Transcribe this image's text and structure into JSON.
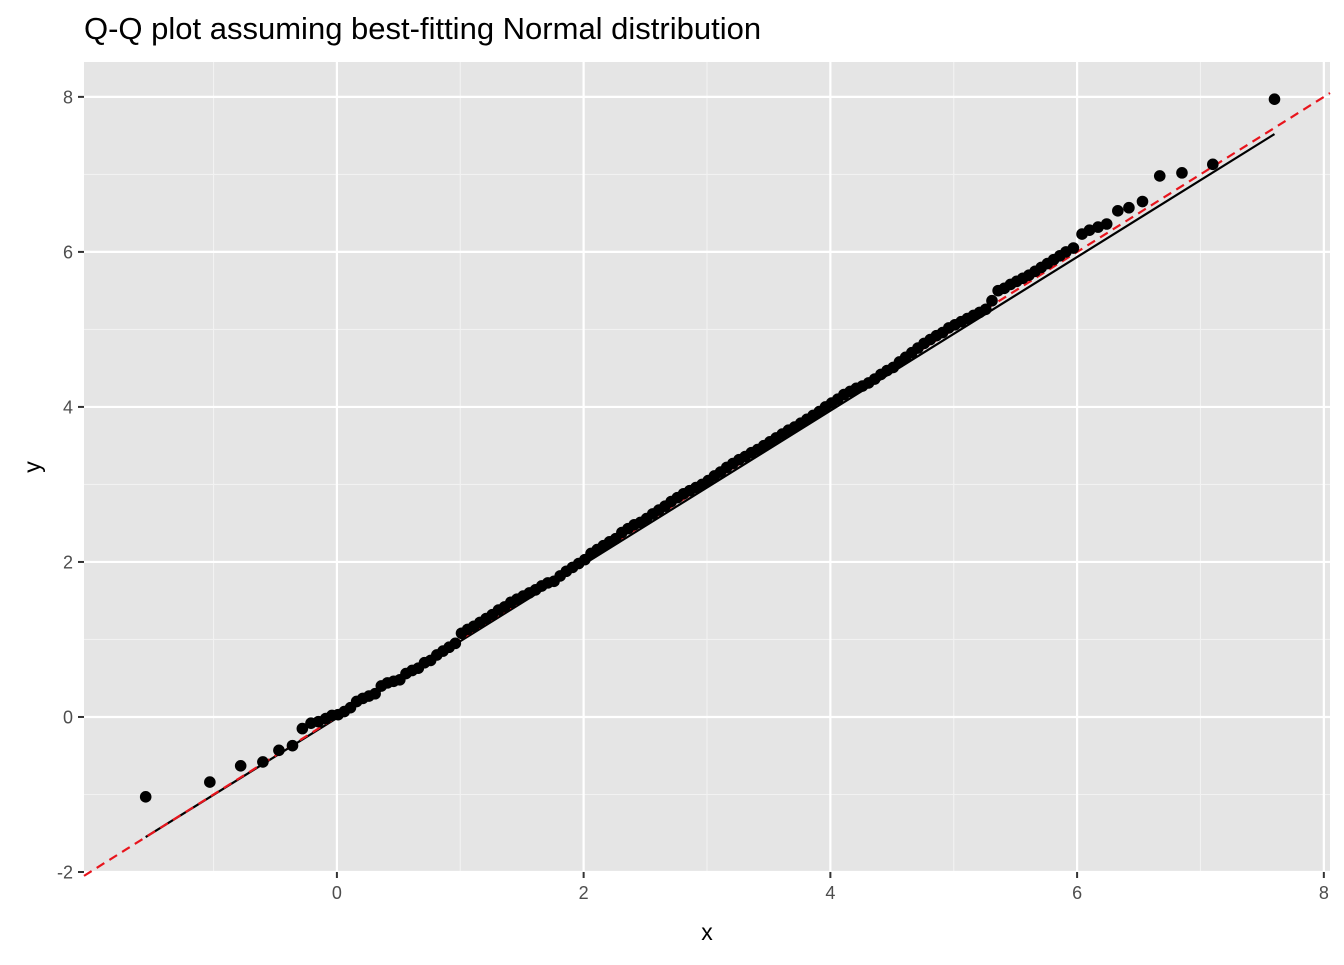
{
  "chart_data": {
    "type": "scatter",
    "title": "Q-Q plot assuming best-fitting Normal distribution",
    "xlabel": "x",
    "ylabel": "y",
    "xlim": [
      -2.05,
      8.05
    ],
    "ylim": [
      -2.0,
      8.45
    ],
    "x_ticks": [
      0,
      2,
      4,
      6,
      8
    ],
    "y_ticks": [
      -2,
      0,
      2,
      4,
      6,
      8
    ],
    "x_tick_labels": [
      "0",
      "2",
      "4",
      "6",
      "8"
    ],
    "y_tick_labels": [
      "-2",
      "0",
      "2",
      "4",
      "6",
      "8"
    ],
    "grid": true,
    "legend": "none",
    "colors": {
      "panel_bg": "#e5e5e5",
      "grid_major": "#ffffff",
      "grid_minor": "#f2f2f2",
      "points": "#000000",
      "qq_line": "#000000",
      "identity_line": "#e8141c",
      "text": "#000000",
      "tick_text": "#4d4d4d",
      "ticks": "#333333"
    },
    "reference_lines": [
      {
        "role": "qq-line",
        "style": "solid",
        "x": [
          -1.55,
          7.6
        ],
        "y": [
          -1.55,
          7.52
        ]
      },
      {
        "role": "identity",
        "style": "dashed",
        "x": [
          -2.05,
          8.05
        ],
        "y": [
          -2.05,
          8.05
        ]
      }
    ],
    "series": [
      {
        "x": [
          -1.55,
          -1.03,
          -0.78,
          -0.6,
          -0.47,
          -0.36,
          -0.28,
          -0.21,
          -0.15,
          -0.09,
          -0.04,
          0.01,
          0.06,
          0.11,
          0.16,
          0.21,
          0.26,
          0.31,
          0.36,
          0.41,
          0.46,
          0.51,
          0.56,
          0.61,
          0.66,
          0.71,
          0.76,
          0.81,
          0.86,
          0.91,
          0.96,
          1.01,
          1.06,
          1.11,
          1.16,
          1.21,
          1.26,
          1.31,
          1.36,
          1.41,
          1.46,
          1.51,
          1.56,
          1.61,
          1.66,
          1.71,
          1.76,
          1.81,
          1.86,
          1.91,
          1.96,
          2.01,
          2.06,
          2.11,
          2.16,
          2.21,
          2.26,
          2.31,
          2.36,
          2.41,
          2.46,
          2.51,
          2.56,
          2.61,
          2.66,
          2.71,
          2.76,
          2.81,
          2.86,
          2.91,
          2.96,
          3.01,
          3.06,
          3.11,
          3.16,
          3.21,
          3.26,
          3.31,
          3.36,
          3.41,
          3.46,
          3.51,
          3.56,
          3.61,
          3.66,
          3.71,
          3.76,
          3.81,
          3.86,
          3.91,
          3.96,
          4.01,
          4.06,
          4.11,
          4.16,
          4.21,
          4.26,
          4.31,
          4.36,
          4.41,
          4.46,
          4.51,
          4.56,
          4.61,
          4.66,
          4.71,
          4.76,
          4.81,
          4.86,
          4.91,
          4.96,
          5.01,
          5.06,
          5.11,
          5.16,
          5.21,
          5.26,
          5.31,
          5.36,
          5.41,
          5.46,
          5.51,
          5.56,
          5.61,
          5.66,
          5.71,
          5.76,
          5.81,
          5.86,
          5.91,
          5.97,
          6.04,
          6.1,
          6.17,
          6.24,
          6.33,
          6.42,
          6.53,
          6.67,
          6.85,
          7.1,
          7.6
        ],
        "y": [
          -1.03,
          -0.84,
          -0.63,
          -0.58,
          -0.43,
          -0.37,
          -0.15,
          -0.08,
          -0.06,
          -0.02,
          0.02,
          0.03,
          0.07,
          0.12,
          0.2,
          0.24,
          0.27,
          0.3,
          0.4,
          0.44,
          0.46,
          0.48,
          0.56,
          0.6,
          0.63,
          0.7,
          0.73,
          0.8,
          0.85,
          0.9,
          0.95,
          1.08,
          1.13,
          1.17,
          1.22,
          1.27,
          1.32,
          1.38,
          1.42,
          1.48,
          1.52,
          1.56,
          1.6,
          1.64,
          1.69,
          1.73,
          1.75,
          1.82,
          1.88,
          1.93,
          1.98,
          2.03,
          2.11,
          2.16,
          2.21,
          2.26,
          2.3,
          2.38,
          2.43,
          2.48,
          2.51,
          2.56,
          2.62,
          2.67,
          2.72,
          2.78,
          2.83,
          2.88,
          2.92,
          2.96,
          3.0,
          3.05,
          3.11,
          3.16,
          3.22,
          3.27,
          3.32,
          3.36,
          3.41,
          3.45,
          3.5,
          3.55,
          3.6,
          3.65,
          3.7,
          3.74,
          3.79,
          3.84,
          3.89,
          3.94,
          4.0,
          4.05,
          4.1,
          4.16,
          4.2,
          4.24,
          4.27,
          4.31,
          4.36,
          4.42,
          4.47,
          4.51,
          4.58,
          4.64,
          4.7,
          4.76,
          4.82,
          4.87,
          4.92,
          4.96,
          5.02,
          5.06,
          5.1,
          5.14,
          5.18,
          5.22,
          5.26,
          5.37,
          5.5,
          5.53,
          5.58,
          5.62,
          5.66,
          5.7,
          5.75,
          5.8,
          5.85,
          5.9,
          5.95,
          6.0,
          6.05,
          6.23,
          6.28,
          6.32,
          6.36,
          6.53,
          6.57,
          6.65,
          6.98,
          7.02,
          7.13,
          7.97
        ]
      }
    ]
  }
}
